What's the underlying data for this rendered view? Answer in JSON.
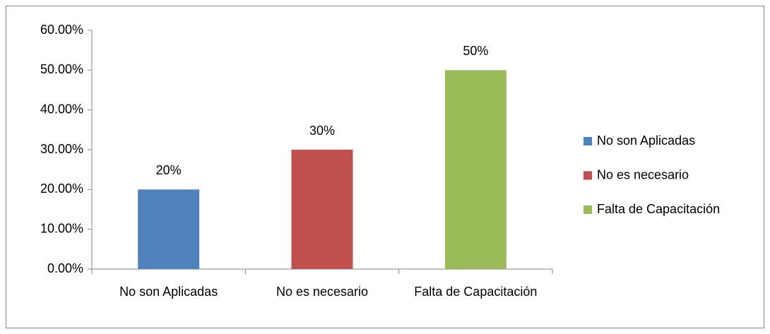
{
  "chart_data": {
    "type": "bar",
    "categories": [
      "No son Aplicadas",
      "No es necesario",
      "Falta de Capacitación"
    ],
    "values": [
      20,
      30,
      50
    ],
    "value_labels": [
      "20%",
      "30%",
      "50%"
    ],
    "colors": [
      "#4f81bd",
      "#c0504d",
      "#9bbb59"
    ],
    "ylim": [
      0,
      60
    ],
    "yticks": [
      {
        "value": 0,
        "label": "0.00%"
      },
      {
        "value": 10,
        "label": "10.00%"
      },
      {
        "value": 20,
        "label": "20.00%"
      },
      {
        "value": 30,
        "label": "30.00%"
      },
      {
        "value": 40,
        "label": "40.00%"
      },
      {
        "value": 50,
        "label": "50.00%"
      },
      {
        "value": 60,
        "label": "60.00%"
      }
    ],
    "grid": false,
    "legend": "right"
  }
}
